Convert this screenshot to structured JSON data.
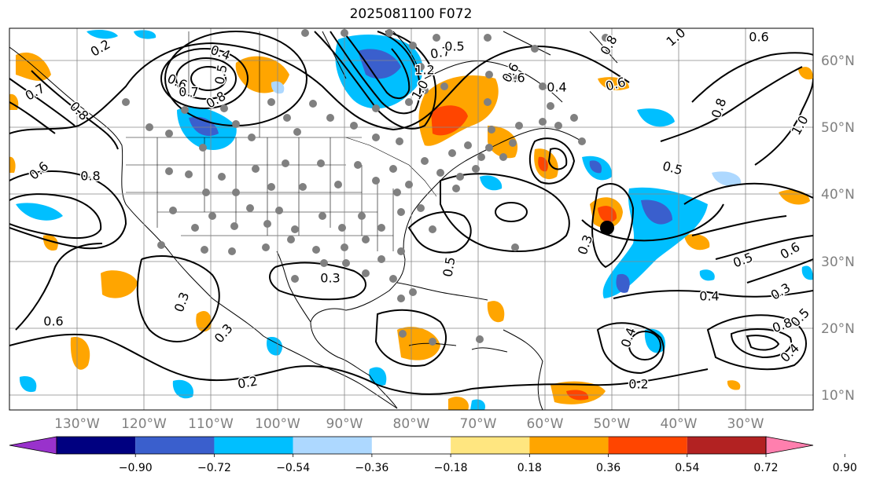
{
  "title": "2025081100 F072",
  "lon_labels": [
    "130°W",
    "120°W",
    "110°W",
    "100°W",
    "90°W",
    "80°W",
    "70°W",
    "60°W",
    "50°W",
    "40°W",
    "30°W"
  ],
  "lat_labels": [
    "60°N",
    "50°N",
    "40°N",
    "30°N",
    "20°N",
    "10°N"
  ],
  "contour_labels": [
    {
      "text": "0.2"
    },
    {
      "text": "0.4"
    },
    {
      "text": "0.5"
    },
    {
      "text": "0.6"
    },
    {
      "text": "0.7"
    },
    {
      "text": "0.8"
    },
    {
      "text": "0.7"
    },
    {
      "text": "1.2"
    },
    {
      "text": "1.0"
    },
    {
      "text": "0.6"
    },
    {
      "text": "0.4"
    },
    {
      "text": "0.6"
    },
    {
      "text": "0.6"
    },
    {
      "text": "0.8"
    },
    {
      "text": "1.0"
    },
    {
      "text": "0.5"
    },
    {
      "text": "0.5"
    },
    {
      "text": "0.6"
    },
    {
      "text": "0.8"
    },
    {
      "text": "0.7"
    },
    {
      "text": "0.8"
    },
    {
      "text": "1.0"
    },
    {
      "text": "0.6"
    },
    {
      "text": "0.3"
    },
    {
      "text": "0.5"
    },
    {
      "text": "0.6"
    },
    {
      "text": "0.3"
    },
    {
      "text": "0.2"
    },
    {
      "text": "0.3"
    },
    {
      "text": "0.3"
    },
    {
      "text": "0.5"
    },
    {
      "text": "0.6"
    },
    {
      "text": "0.3"
    },
    {
      "text": "0.4"
    },
    {
      "text": "0.2"
    },
    {
      "text": "0.4"
    },
    {
      "text": "0.8"
    },
    {
      "text": "0.5"
    },
    {
      "text": "0.4"
    },
    {
      "text": "0.8"
    }
  ],
  "colorbar": {
    "colors": [
      "#9932CC",
      "#000080",
      "#3A5FCD",
      "#00BFFF",
      "#ADD8FF",
      "#FFFFFF",
      "#FFE680",
      "#FFA500",
      "#FF4500",
      "#B22222",
      "#FF7FAE"
    ],
    "ticks": [
      "−0.90",
      "−0.72",
      "−0.54",
      "−0.36",
      "−0.18",
      "0.18",
      "0.36",
      "0.54",
      "0.72",
      "0.90"
    ]
  }
}
